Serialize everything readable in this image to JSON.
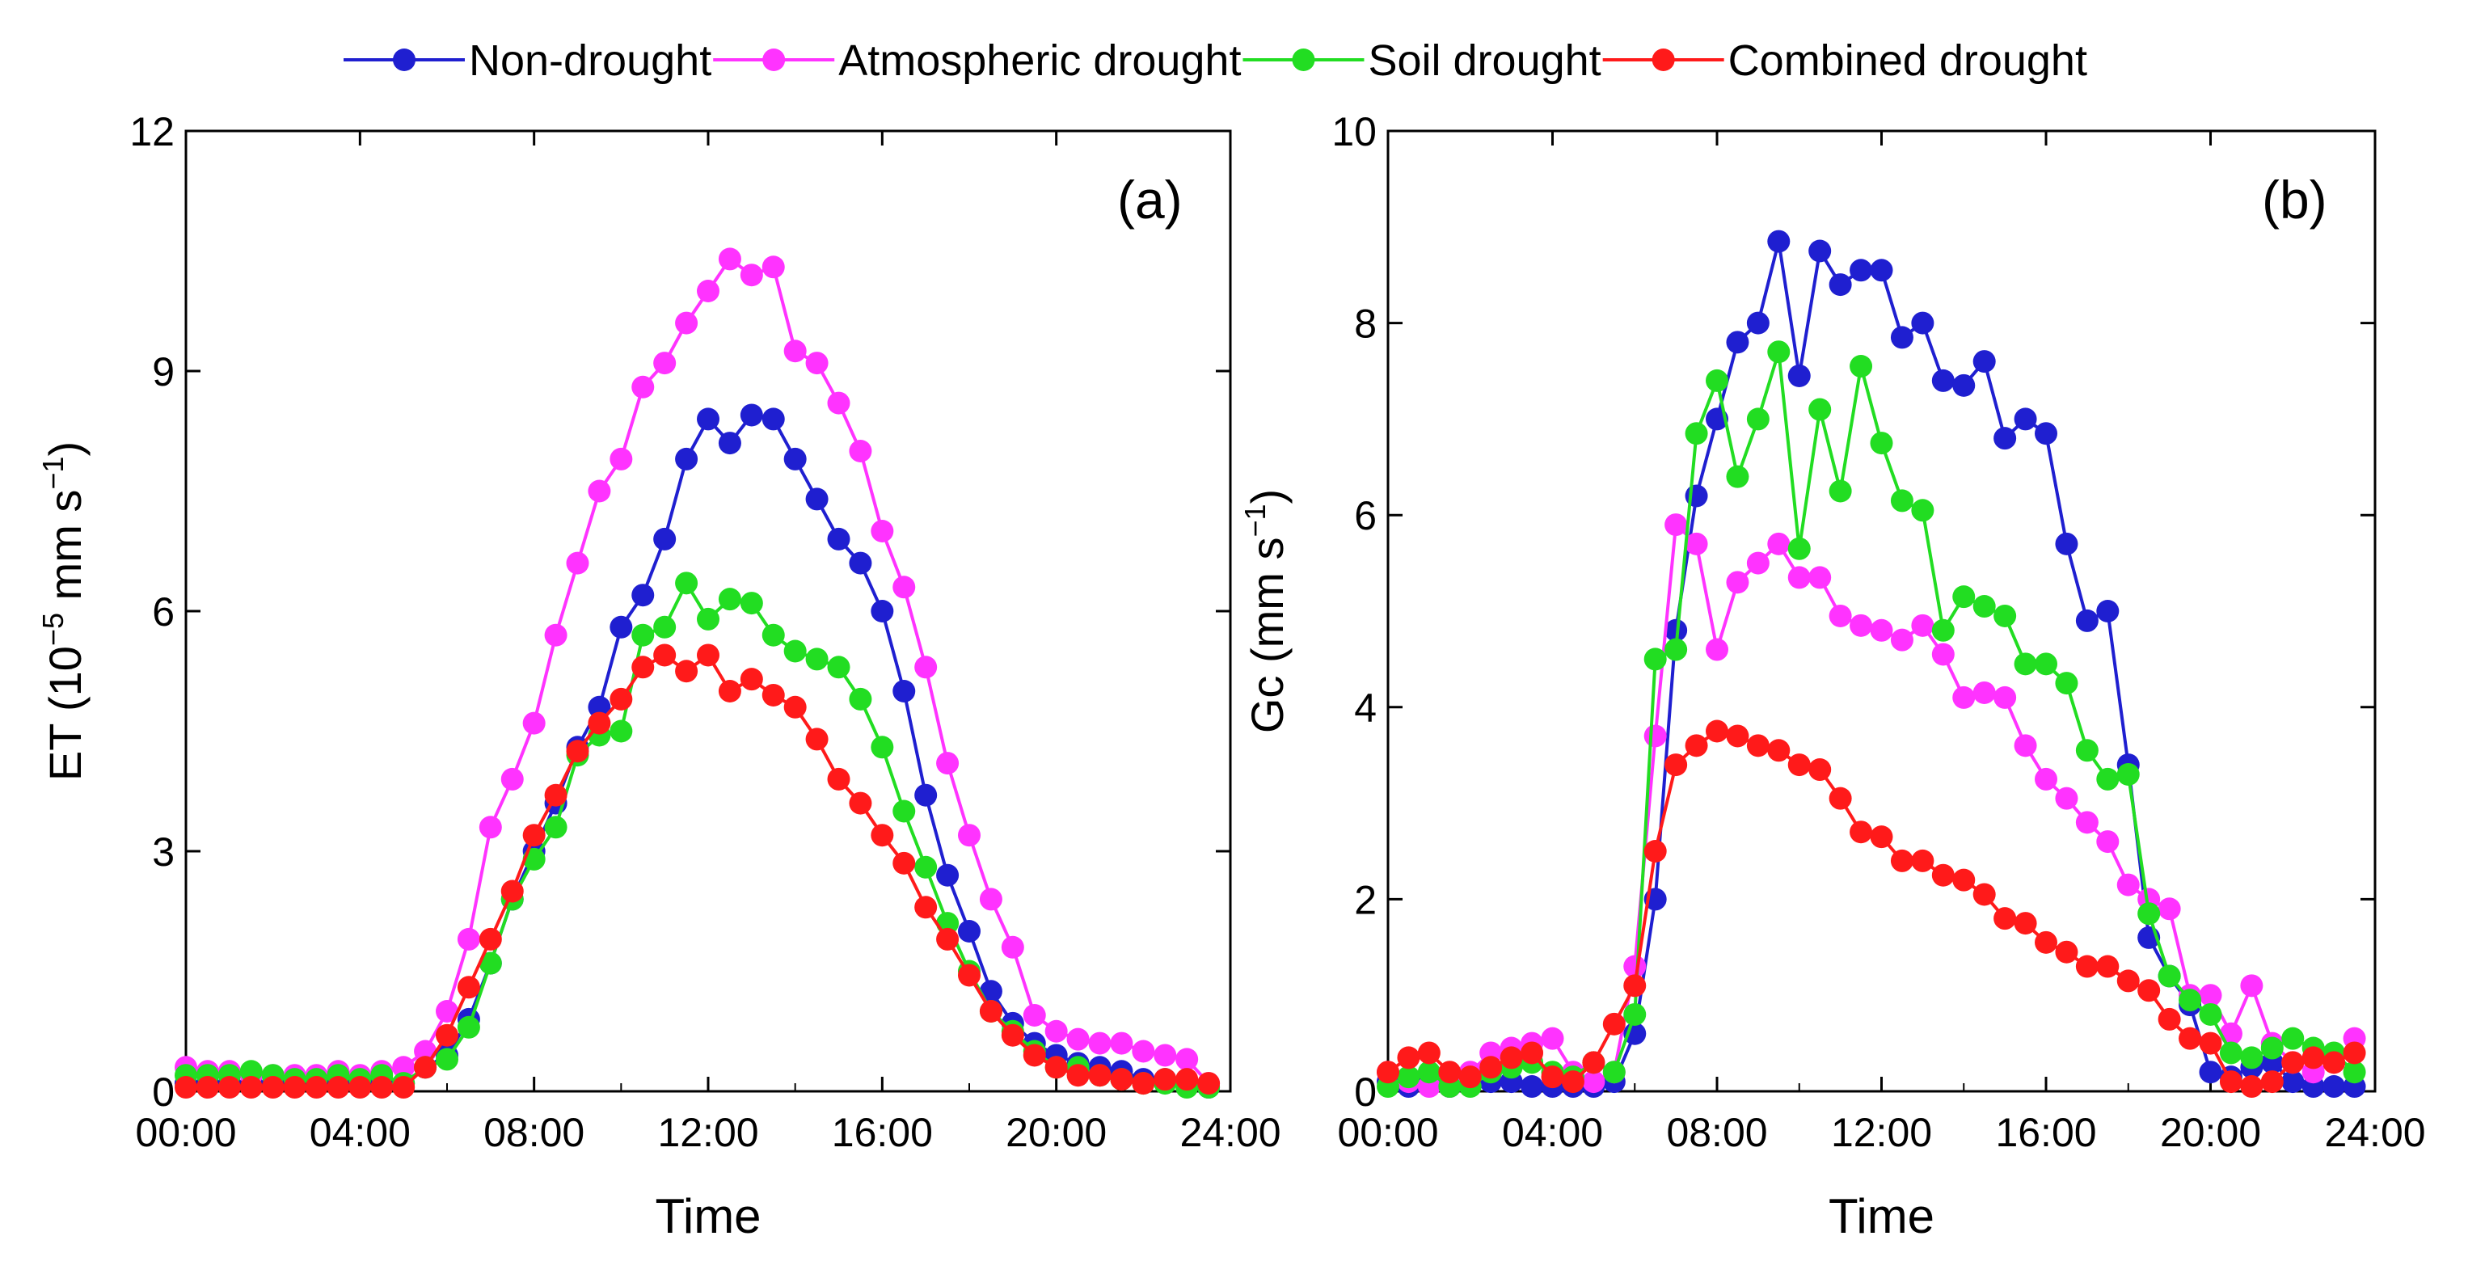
{
  "legend": {
    "placement": "top-center",
    "items": [
      {
        "label": "Non-drought",
        "color": "#1f1fd0"
      },
      {
        "label": "Atmospheric drought",
        "color": "#ff33ff"
      },
      {
        "label": "Soil drought",
        "color": "#22dd22"
      },
      {
        "label": "Combined drought",
        "color": "#ff1a1a"
      }
    ]
  },
  "chart_data": [
    {
      "type": "line",
      "annotation": "(a)",
      "xlabel": "Time",
      "ylabel_main": "ET (10",
      "ylabel_sup": "−5",
      "ylabel_mid": " mm s",
      "ylabel_sup2": "−1",
      "ylabel_end": ")",
      "xlim": [
        0,
        24
      ],
      "ylim": [
        0,
        12
      ],
      "xticks": [
        0,
        4,
        8,
        12,
        16,
        20,
        24
      ],
      "xtick_labels": [
        "00:00",
        "04:00",
        "08:00",
        "12:00",
        "16:00",
        "20:00",
        "24:00"
      ],
      "yticks": [
        0,
        3,
        6,
        9,
        12
      ],
      "ytick_labels": [
        "0",
        "3",
        "6",
        "9",
        "12"
      ],
      "grid": false,
      "x": [
        0,
        0.5,
        1,
        1.5,
        2,
        2.5,
        3,
        3.5,
        4,
        4.5,
        5,
        5.5,
        6,
        6.5,
        7,
        7.5,
        8,
        8.5,
        9,
        9.5,
        10,
        10.5,
        11,
        11.5,
        12,
        12.5,
        13,
        13.5,
        14,
        14.5,
        15,
        15.5,
        16,
        16.5,
        17,
        17.5,
        18,
        18.5,
        19,
        19.5,
        20,
        20.5,
        21,
        21.5,
        22,
        22.5,
        23,
        23.5
      ],
      "series": [
        {
          "name": "Non-drought",
          "values": [
            0.1,
            0.1,
            0.1,
            0.1,
            0.1,
            0.1,
            0.1,
            0.1,
            0.1,
            0.15,
            0.1,
            0.3,
            0.45,
            0.9,
            1.6,
            2.4,
            3.0,
            3.6,
            4.3,
            4.8,
            5.8,
            6.2,
            6.9,
            7.9,
            8.4,
            8.1,
            8.45,
            8.4,
            7.9,
            7.4,
            6.9,
            6.6,
            6.0,
            5.0,
            3.7,
            2.7,
            2.0,
            1.25,
            0.85,
            0.6,
            0.45,
            0.35,
            0.3,
            0.25,
            0.15,
            0.15,
            0.1,
            0.05
          ]
        },
        {
          "name": "Atmospheric drought",
          "values": [
            0.3,
            0.25,
            0.25,
            0.2,
            0.2,
            0.2,
            0.2,
            0.25,
            0.2,
            0.25,
            0.3,
            0.5,
            1.0,
            1.9,
            3.3,
            3.9,
            4.6,
            5.7,
            6.6,
            7.5,
            7.9,
            8.8,
            9.1,
            9.6,
            10.0,
            10.4,
            10.2,
            10.3,
            9.25,
            9.1,
            8.6,
            8.0,
            7.0,
            6.3,
            5.3,
            4.1,
            3.2,
            2.4,
            1.8,
            0.95,
            0.75,
            0.65,
            0.6,
            0.6,
            0.5,
            0.45,
            0.4,
            0.1
          ]
        },
        {
          "name": "Soil drought",
          "values": [
            0.2,
            0.2,
            0.2,
            0.25,
            0.2,
            0.15,
            0.15,
            0.2,
            0.15,
            0.2,
            0.1,
            0.3,
            0.4,
            0.8,
            1.6,
            2.4,
            2.9,
            3.3,
            4.2,
            4.45,
            4.5,
            5.7,
            5.8,
            6.35,
            5.9,
            6.15,
            6.1,
            5.7,
            5.5,
            5.4,
            5.3,
            4.9,
            4.3,
            3.5,
            2.8,
            2.1,
            1.5,
            1.0,
            0.75,
            0.5,
            0.3,
            0.3,
            0.2,
            0.15,
            0.1,
            0.1,
            0.05,
            0.05
          ]
        },
        {
          "name": "Combined drought",
          "values": [
            0.05,
            0.05,
            0.05,
            0.05,
            0.05,
            0.05,
            0.05,
            0.05,
            0.05,
            0.05,
            0.05,
            0.3,
            0.7,
            1.3,
            1.9,
            2.5,
            3.2,
            3.7,
            4.25,
            4.6,
            4.9,
            5.3,
            5.45,
            5.25,
            5.45,
            5.0,
            5.15,
            4.95,
            4.8,
            4.4,
            3.9,
            3.6,
            3.2,
            2.85,
            2.3,
            1.9,
            1.45,
            1.0,
            0.7,
            0.45,
            0.3,
            0.2,
            0.2,
            0.15,
            0.1,
            0.15,
            0.15,
            0.1
          ]
        }
      ]
    },
    {
      "type": "line",
      "annotation": "(b)",
      "xlabel": "Time",
      "ylabel_main": "Gc (mm s",
      "ylabel_sup": "−1",
      "ylabel_mid": "",
      "ylabel_sup2": "",
      "ylabel_end": ")",
      "xlim": [
        0,
        24
      ],
      "ylim": [
        0,
        10
      ],
      "xticks": [
        0,
        4,
        8,
        12,
        16,
        20,
        24
      ],
      "xtick_labels": [
        "00:00",
        "04:00",
        "08:00",
        "12:00",
        "16:00",
        "20:00",
        "24:00"
      ],
      "yticks": [
        0,
        2,
        4,
        6,
        8,
        10
      ],
      "ytick_labels": [
        "0",
        "2",
        "4",
        "6",
        "8",
        "10"
      ],
      "grid": false,
      "x": [
        0,
        0.5,
        1,
        1.5,
        2,
        2.5,
        3,
        3.5,
        4,
        4.5,
        5,
        5.5,
        6,
        6.5,
        7,
        7.5,
        8,
        8.5,
        9,
        9.5,
        10,
        10.5,
        11,
        11.5,
        12,
        12.5,
        13,
        13.5,
        14,
        14.5,
        15,
        15.5,
        16,
        16.5,
        17,
        17.5,
        18,
        18.5,
        19,
        19.5,
        20,
        20.5,
        21,
        21.5,
        22,
        22.5,
        23,
        23.5
      ],
      "series": [
        {
          "name": "Non-drought",
          "values": [
            0.1,
            0.05,
            0.1,
            0.05,
            0.1,
            0.1,
            0.1,
            0.05,
            0.05,
            0.05,
            0.05,
            0.1,
            0.6,
            2.0,
            4.8,
            6.2,
            7.0,
            7.8,
            8.0,
            8.85,
            7.45,
            8.75,
            8.4,
            8.55,
            8.55,
            7.85,
            8.0,
            7.4,
            7.35,
            7.6,
            6.8,
            7.0,
            6.85,
            5.7,
            4.9,
            5.0,
            3.4,
            1.6,
            1.2,
            0.9,
            0.2,
            0.15,
            0.25,
            0.3,
            0.1,
            0.05,
            0.05,
            0.05
          ]
        },
        {
          "name": "Atmospheric drought",
          "values": [
            0.2,
            0.1,
            0.05,
            0.05,
            0.2,
            0.4,
            0.45,
            0.5,
            0.55,
            0.2,
            0.1,
            0.2,
            1.3,
            3.7,
            5.9,
            5.7,
            4.6,
            5.3,
            5.5,
            5.7,
            5.35,
            5.35,
            4.95,
            4.85,
            4.8,
            4.7,
            4.85,
            4.55,
            4.1,
            4.15,
            4.1,
            3.6,
            3.25,
            3.05,
            2.8,
            2.6,
            2.15,
            2.0,
            1.9,
            1.0,
            1.0,
            0.6,
            1.1,
            0.5,
            0.3,
            0.2,
            0.3,
            0.55
          ]
        },
        {
          "name": "Soil drought",
          "values": [
            0.05,
            0.15,
            0.2,
            0.05,
            0.05,
            0.2,
            0.25,
            0.3,
            0.2,
            0.15,
            0.3,
            0.2,
            0.8,
            4.5,
            4.6,
            6.85,
            7.4,
            6.4,
            7.0,
            7.7,
            5.65,
            7.1,
            6.25,
            7.55,
            6.75,
            6.15,
            6.05,
            4.8,
            5.15,
            5.05,
            4.95,
            4.45,
            4.45,
            4.25,
            3.55,
            3.25,
            3.3,
            1.85,
            1.2,
            0.95,
            0.8,
            0.4,
            0.35,
            0.45,
            0.55,
            0.45,
            0.4,
            0.2
          ]
        },
        {
          "name": "Combined drought",
          "values": [
            0.2,
            0.35,
            0.4,
            0.2,
            0.15,
            0.25,
            0.35,
            0.4,
            0.15,
            0.1,
            0.3,
            0.7,
            1.1,
            2.5,
            3.4,
            3.6,
            3.75,
            3.7,
            3.6,
            3.55,
            3.4,
            3.35,
            3.05,
            2.7,
            2.65,
            2.4,
            2.4,
            2.25,
            2.2,
            2.05,
            1.8,
            1.75,
            1.55,
            1.45,
            1.3,
            1.3,
            1.15,
            1.05,
            0.75,
            0.55,
            0.5,
            0.1,
            0.05,
            0.1,
            0.3,
            0.35,
            0.3,
            0.4
          ]
        }
      ]
    }
  ]
}
